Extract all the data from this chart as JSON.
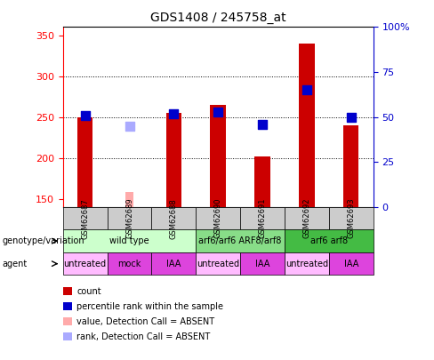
{
  "title": "GDS1408 / 245758_at",
  "samples": [
    "GSM62687",
    "GSM62689",
    "GSM62688",
    "GSM62690",
    "GSM62691",
    "GSM62692",
    "GSM62693"
  ],
  "count_values": [
    250,
    null,
    255,
    265,
    202,
    340,
    240
  ],
  "count_absent": [
    null,
    158,
    null,
    null,
    null,
    null,
    null
  ],
  "percentile_values": [
    51,
    null,
    52,
    53,
    46,
    65,
    50
  ],
  "percentile_absent": [
    null,
    45,
    null,
    null,
    null,
    null,
    null
  ],
  "ylim_left": [
    140,
    360
  ],
  "ylim_right": [
    0,
    100
  ],
  "yticks_left": [
    150,
    200,
    250,
    300,
    350
  ],
  "yticks_right": [
    0,
    25,
    50,
    75,
    100
  ],
  "hlines": [
    200,
    250,
    300
  ],
  "bar_color": "#cc0000",
  "bar_absent_color": "#ffaaaa",
  "dot_color": "#0000cc",
  "dot_absent_color": "#aaaaff",
  "genotype_groups": [
    {
      "label": "wild type",
      "start": 0,
      "end": 3,
      "color": "#ccffcc"
    },
    {
      "label": "arf6/arf6 ARF8/arf8",
      "start": 3,
      "end": 5,
      "color": "#88dd88"
    },
    {
      "label": "arf6 arf8",
      "start": 5,
      "end": 7,
      "color": "#44bb44"
    }
  ],
  "agent_groups": [
    {
      "label": "untreated",
      "start": 0,
      "end": 1,
      "color": "#ffbbff"
    },
    {
      "label": "mock",
      "start": 1,
      "end": 2,
      "color": "#dd44dd"
    },
    {
      "label": "IAA",
      "start": 2,
      "end": 3,
      "color": "#dd44dd"
    },
    {
      "label": "untreated",
      "start": 3,
      "end": 4,
      "color": "#ffbbff"
    },
    {
      "label": "IAA",
      "start": 4,
      "end": 5,
      "color": "#dd44dd"
    },
    {
      "label": "untreated",
      "start": 5,
      "end": 6,
      "color": "#ffbbff"
    },
    {
      "label": "IAA",
      "start": 6,
      "end": 7,
      "color": "#dd44dd"
    }
  ],
  "legend_items": [
    {
      "label": "count",
      "color": "#cc0000"
    },
    {
      "label": "percentile rank within the sample",
      "color": "#0000cc"
    },
    {
      "label": "value, Detection Call = ABSENT",
      "color": "#ffaaaa"
    },
    {
      "label": "rank, Detection Call = ABSENT",
      "color": "#aaaaff"
    }
  ],
  "bar_width": 0.35,
  "dot_size": 55,
  "right_axis_color": "#0000cc"
}
